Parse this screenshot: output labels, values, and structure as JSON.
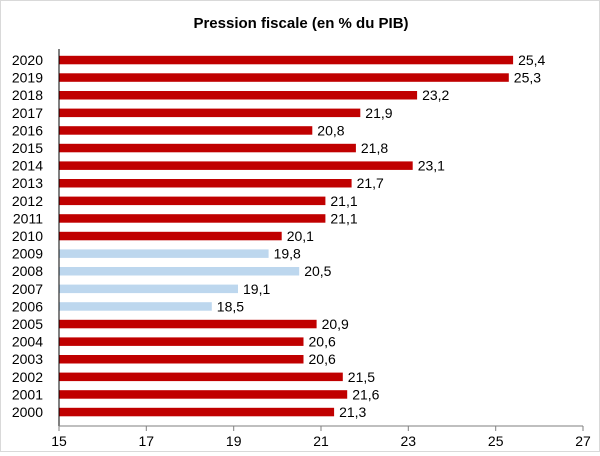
{
  "colors": {
    "primary": "#c00000",
    "highlight": "#bdd7ee",
    "axis": "#000000"
  },
  "chart_data": {
    "type": "bar",
    "orientation": "horizontal",
    "title": "Pression fiscale (en % du PIB)",
    "xlim": [
      15,
      27
    ],
    "xticks": [
      "15",
      "17",
      "19",
      "21",
      "23",
      "25",
      "27"
    ],
    "grid": false,
    "legend": "none",
    "bars": [
      {
        "year": "2020",
        "value": 25.4,
        "label": "25,4",
        "color": "primary"
      },
      {
        "year": "2019",
        "value": 25.3,
        "label": "25,3",
        "color": "primary"
      },
      {
        "year": "2018",
        "value": 23.2,
        "label": "23,2",
        "color": "primary"
      },
      {
        "year": "2017",
        "value": 21.9,
        "label": "21,9",
        "color": "primary"
      },
      {
        "year": "2016",
        "value": 20.8,
        "label": "20,8",
        "color": "primary"
      },
      {
        "year": "2015",
        "value": 21.8,
        "label": "21,8",
        "color": "primary"
      },
      {
        "year": "2014",
        "value": 23.1,
        "label": "23,1",
        "color": "primary"
      },
      {
        "year": "2013",
        "value": 21.7,
        "label": "21,7",
        "color": "primary"
      },
      {
        "year": "2012",
        "value": 21.1,
        "label": "21,1",
        "color": "primary"
      },
      {
        "year": "2011",
        "value": 21.1,
        "label": "21,1",
        "color": "primary"
      },
      {
        "year": "2010",
        "value": 20.1,
        "label": "20,1",
        "color": "primary"
      },
      {
        "year": "2009",
        "value": 19.8,
        "label": "19,8",
        "color": "highlight"
      },
      {
        "year": "2008",
        "value": 20.5,
        "label": "20,5",
        "color": "highlight"
      },
      {
        "year": "2007",
        "value": 19.1,
        "label": "19,1",
        "color": "highlight"
      },
      {
        "year": "2006",
        "value": 18.5,
        "label": "18,5",
        "color": "highlight"
      },
      {
        "year": "2005",
        "value": 20.9,
        "label": "20,9",
        "color": "primary"
      },
      {
        "year": "2004",
        "value": 20.6,
        "label": "20,6",
        "color": "primary"
      },
      {
        "year": "2003",
        "value": 20.6,
        "label": "20,6",
        "color": "primary"
      },
      {
        "year": "2002",
        "value": 21.5,
        "label": "21,5",
        "color": "primary"
      },
      {
        "year": "2001",
        "value": 21.6,
        "label": "21,6",
        "color": "primary"
      },
      {
        "year": "2000",
        "value": 21.3,
        "label": "21,3",
        "color": "primary"
      }
    ]
  }
}
